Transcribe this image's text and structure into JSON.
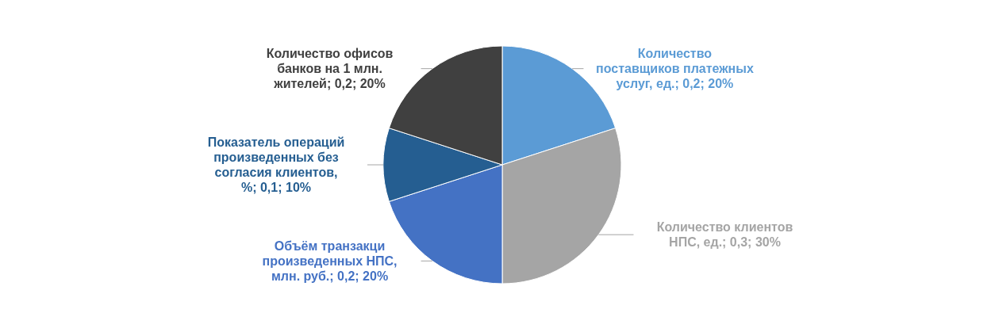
{
  "chart_data": {
    "type": "pie",
    "categories": [
      "Количество поставщиков платежных услуг, ед.",
      "Количество клиентов НПС, ед.",
      "Объём транзакци произведенных НПС, млн. руб.",
      "Показатель операций произведенных без согласия клиентов, %",
      "Количество офисов банков на 1 млн. жителей"
    ],
    "values": [
      0.2,
      0.3,
      0.2,
      0.1,
      0.2
    ],
    "value_labels": [
      "0,2; 20%",
      "0,3; 30%",
      "0,2; 20%",
      "0,1; 10%",
      "0,2; 20%"
    ],
    "colors": [
      "#5b9bd5",
      "#a5a5a5",
      "#4472c4",
      "#255e91",
      "#404040"
    ]
  }
}
